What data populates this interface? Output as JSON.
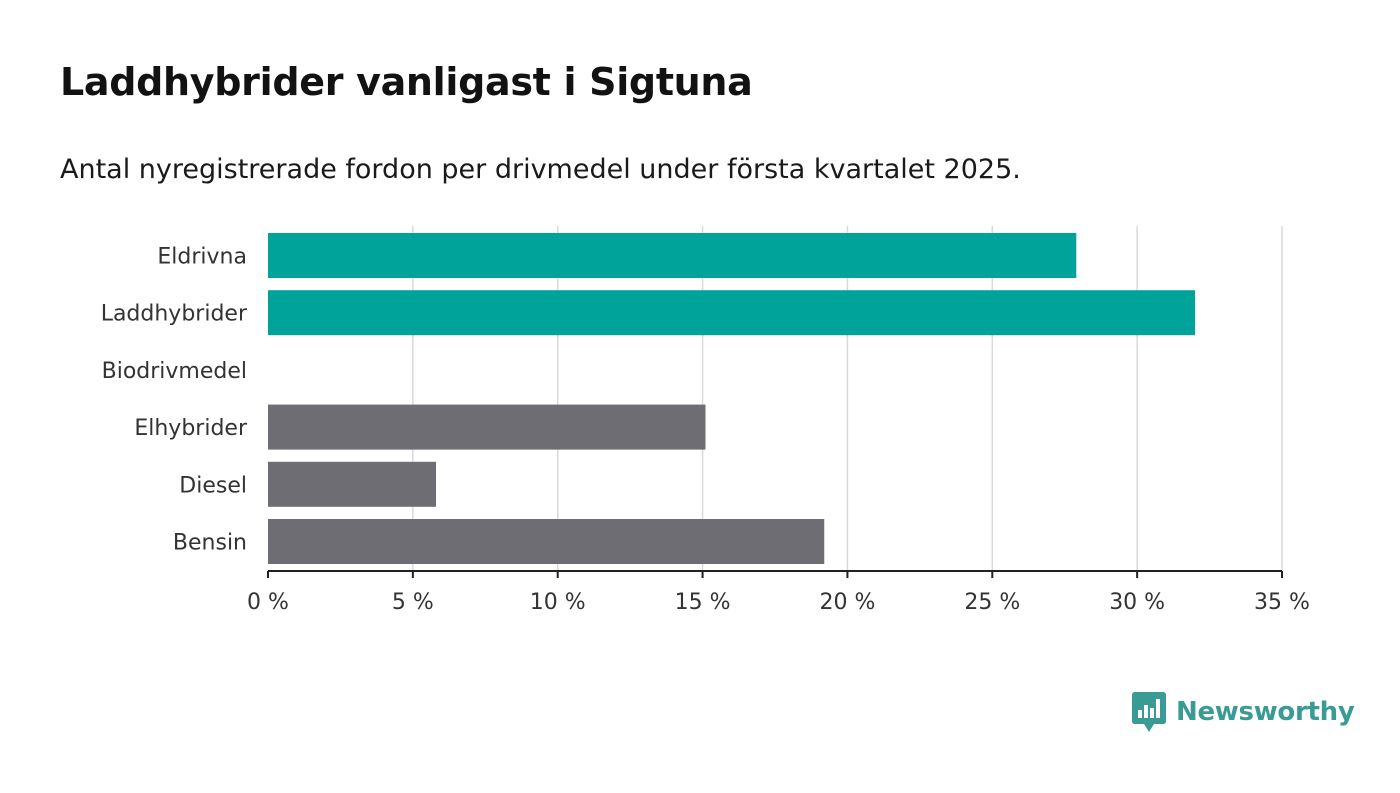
{
  "title": "Laddhybrider vanligast i Sigtuna",
  "subtitle": "Antal nyregistrerade fordon per drivmedel under första kvartalet 2025.",
  "chart_data": {
    "type": "bar",
    "orientation": "horizontal",
    "categories": [
      "Eldrivna",
      "Laddhybrider",
      "Biodrivmedel",
      "Elhybrider",
      "Diesel",
      "Bensin"
    ],
    "values": [
      27.9,
      32.0,
      0,
      15.1,
      5.8,
      19.2
    ],
    "colors": [
      "#00a39a",
      "#00a39a",
      "#00a39a",
      "#6e6d73",
      "#6e6d73",
      "#6e6d73"
    ],
    "xlim": [
      0,
      35
    ],
    "xticks": [
      0,
      5,
      10,
      15,
      20,
      25,
      30,
      35
    ],
    "tick_labels": [
      "0 %",
      "5 %",
      "10 %",
      "15 %",
      "20 %",
      "25 %",
      "30 %",
      "35 %"
    ],
    "grid": true
  },
  "logo": {
    "text": "Newsworthy",
    "icon": "newsworthy-logo-icon",
    "color": "#3a9b95"
  }
}
